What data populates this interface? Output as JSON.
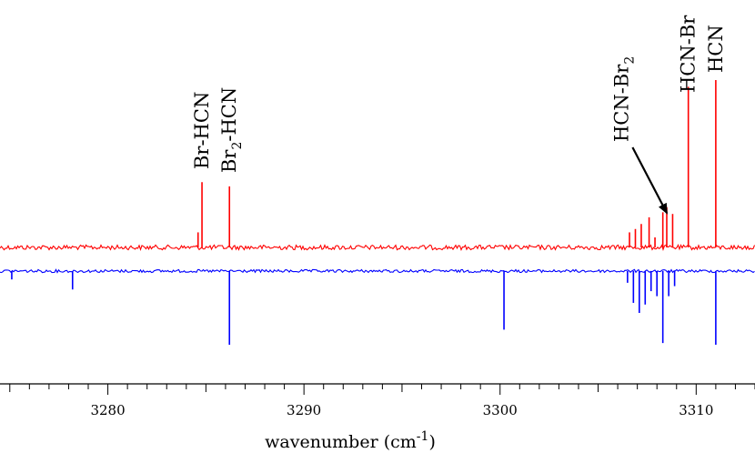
{
  "chart_data": {
    "type": "line",
    "title": "",
    "xlabel": "wavenumber (cm",
    "xlabel_sup": "-1",
    "xlabel_close": ")",
    "ylabel": "",
    "xlim": [
      3274.5,
      3313
    ],
    "x_ticks": [
      3280,
      3290,
      3300,
      3310
    ],
    "x_tick_labels": [
      "3280",
      "3290",
      "3300",
      "3310"
    ],
    "grid": false,
    "series": [
      {
        "color": "#ff0000",
        "direction": "up",
        "peaks": [
          {
            "x": 3284.6,
            "h": 0.18
          },
          {
            "x": 3284.8,
            "h": 0.78
          },
          {
            "x": 3286.2,
            "h": 0.73
          },
          {
            "x": 3306.6,
            "h": 0.18
          },
          {
            "x": 3306.9,
            "h": 0.22
          },
          {
            "x": 3307.2,
            "h": 0.28
          },
          {
            "x": 3307.6,
            "h": 0.36
          },
          {
            "x": 3307.9,
            "h": 0.12
          },
          {
            "x": 3308.3,
            "h": 0.42
          },
          {
            "x": 3308.5,
            "h": 0.48
          },
          {
            "x": 3308.8,
            "h": 0.4
          },
          {
            "x": 3309.6,
            "h": 1.92
          },
          {
            "x": 3311.0,
            "h": 2.0
          }
        ]
      },
      {
        "color": "#0000ff",
        "direction": "down",
        "peaks": [
          {
            "x": 3275.1,
            "h": 0.1
          },
          {
            "x": 3278.2,
            "h": 0.22
          },
          {
            "x": 3286.2,
            "h": 0.88
          },
          {
            "x": 3300.2,
            "h": 0.7
          },
          {
            "x": 3306.5,
            "h": 0.14
          },
          {
            "x": 3306.8,
            "h": 0.38
          },
          {
            "x": 3307.1,
            "h": 0.5
          },
          {
            "x": 3307.4,
            "h": 0.4
          },
          {
            "x": 3307.7,
            "h": 0.24
          },
          {
            "x": 3308.0,
            "h": 0.3
          },
          {
            "x": 3308.3,
            "h": 0.86
          },
          {
            "x": 3308.6,
            "h": 0.3
          },
          {
            "x": 3308.9,
            "h": 0.18
          },
          {
            "x": 3311.0,
            "h": 0.88
          }
        ]
      }
    ],
    "annotations": [
      {
        "main": "Br-HCN",
        "sub": "",
        "after": "",
        "x": 3284.8
      },
      {
        "main": "Br",
        "sub": "2",
        "after": "-HCN",
        "x": 3286.2
      },
      {
        "main": "HCN-Br",
        "sub": "2",
        "after": "",
        "x": 3306.2,
        "arrow_to_x": 3308.5
      },
      {
        "main": "HCN-Br",
        "sub": "",
        "after": "",
        "x": 3309.6
      },
      {
        "main": "HCN",
        "sub": "",
        "after": "",
        "x": 3311.0
      }
    ]
  }
}
